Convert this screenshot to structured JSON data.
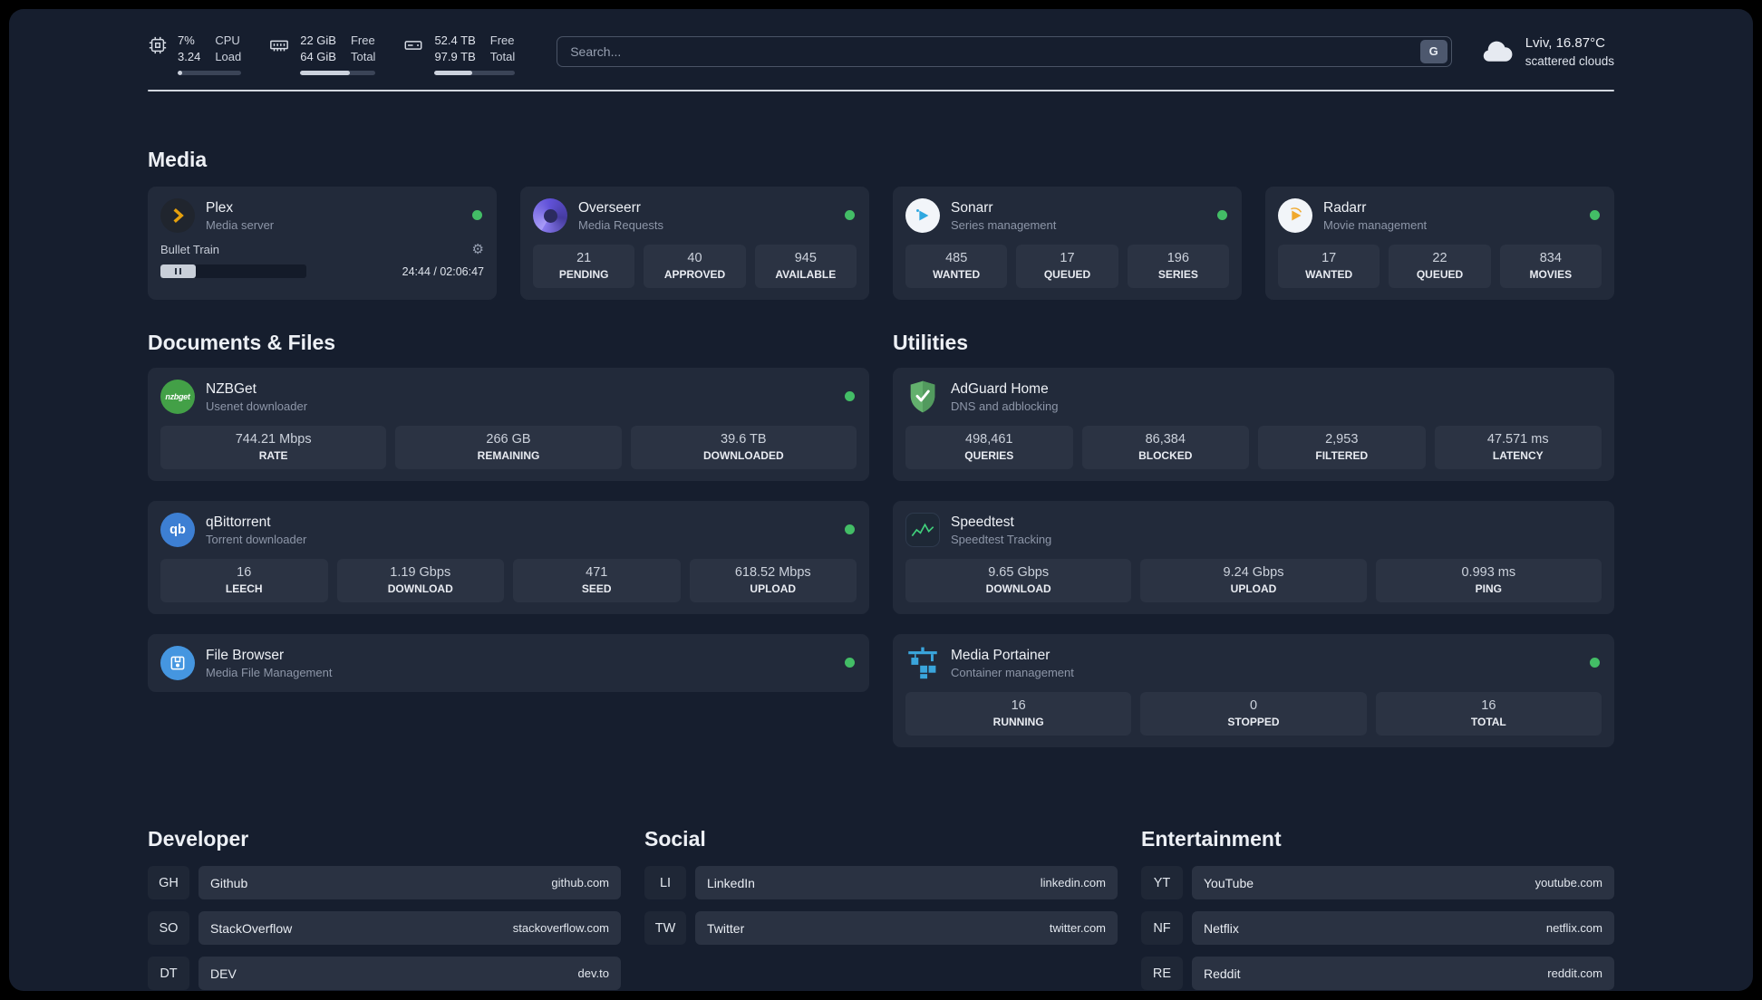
{
  "topbar": {
    "cpu": {
      "v1": "7%",
      "v2": "3.24",
      "l1": "CPU",
      "l2": "Load",
      "bar": 7
    },
    "ram": {
      "v1": "22 GiB",
      "v2": "64 GiB",
      "l1": "Free",
      "l2": "Total",
      "bar": 66
    },
    "disk": {
      "v1": "52.4 TB",
      "v2": "97.9 TB",
      "l1": "Free",
      "l2": "Total",
      "bar": 47
    },
    "search": {
      "placeholder": "Search...",
      "button": "G"
    },
    "weather": {
      "location": "Lviv, 16.87°C",
      "condition": "scattered clouds"
    }
  },
  "media": {
    "heading": "Media",
    "plex": {
      "name": "Plex",
      "subtitle": "Media server",
      "now_playing": "Bullet Train",
      "time": "24:44 / 02:06:47",
      "progress": 20,
      "pill": 24
    },
    "overseerr": {
      "name": "Overseerr",
      "subtitle": "Media Requests",
      "stats": [
        {
          "value": "21",
          "label": "PENDING"
        },
        {
          "value": "40",
          "label": "APPROVED"
        },
        {
          "value": "945",
          "label": "AVAILABLE"
        }
      ]
    },
    "sonarr": {
      "name": "Sonarr",
      "subtitle": "Series management",
      "stats": [
        {
          "value": "485",
          "label": "WANTED"
        },
        {
          "value": "17",
          "label": "QUEUED"
        },
        {
          "value": "196",
          "label": "SERIES"
        }
      ]
    },
    "radarr": {
      "name": "Radarr",
      "subtitle": "Movie management",
      "stats": [
        {
          "value": "17",
          "label": "WANTED"
        },
        {
          "value": "22",
          "label": "QUEUED"
        },
        {
          "value": "834",
          "label": "MOVIES"
        }
      ]
    }
  },
  "documents": {
    "heading": "Documents & Files",
    "nzbget": {
      "name": "NZBGet",
      "subtitle": "Usenet downloader",
      "stats": [
        {
          "value": "744.21 Mbps",
          "label": "RATE"
        },
        {
          "value": "266 GB",
          "label": "REMAINING"
        },
        {
          "value": "39.6 TB",
          "label": "DOWNLOADED"
        }
      ]
    },
    "qbittorrent": {
      "name": "qBittorrent",
      "subtitle": "Torrent downloader",
      "stats": [
        {
          "value": "16",
          "label": "LEECH"
        },
        {
          "value": "1.19 Gbps",
          "label": "DOWNLOAD"
        },
        {
          "value": "471",
          "label": "SEED"
        },
        {
          "value": "618.52 Mbps",
          "label": "UPLOAD"
        }
      ]
    },
    "filebrowser": {
      "name": "File Browser",
      "subtitle": "Media File Management"
    }
  },
  "utilities": {
    "heading": "Utilities",
    "adguard": {
      "name": "AdGuard Home",
      "subtitle": "DNS and adblocking",
      "stats": [
        {
          "value": "498,461",
          "label": "QUERIES"
        },
        {
          "value": "86,384",
          "label": "BLOCKED"
        },
        {
          "value": "2,953",
          "label": "FILTERED"
        },
        {
          "value": "47.571 ms",
          "label": "LATENCY"
        }
      ]
    },
    "speedtest": {
      "name": "Speedtest",
      "subtitle": "Speedtest Tracking",
      "stats": [
        {
          "value": "9.65 Gbps",
          "label": "DOWNLOAD"
        },
        {
          "value": "9.24 Gbps",
          "label": "UPLOAD"
        },
        {
          "value": "0.993 ms",
          "label": "PING"
        }
      ]
    },
    "portainer": {
      "name": "Media Portainer",
      "subtitle": "Container management",
      "stats": [
        {
          "value": "16",
          "label": "RUNNING"
        },
        {
          "value": "0",
          "label": "STOPPED"
        },
        {
          "value": "16",
          "label": "TOTAL"
        }
      ]
    }
  },
  "bookmarks": {
    "developer": {
      "heading": "Developer",
      "items": [
        {
          "abbr": "GH",
          "name": "Github",
          "url": "github.com"
        },
        {
          "abbr": "SO",
          "name": "StackOverflow",
          "url": "stackoverflow.com"
        },
        {
          "abbr": "DT",
          "name": "DEV",
          "url": "dev.to"
        }
      ]
    },
    "social": {
      "heading": "Social",
      "items": [
        {
          "abbr": "LI",
          "name": "LinkedIn",
          "url": "linkedin.com"
        },
        {
          "abbr": "TW",
          "name": "Twitter",
          "url": "twitter.com"
        }
      ]
    },
    "entertainment": {
      "heading": "Entertainment",
      "items": [
        {
          "abbr": "YT",
          "name": "YouTube",
          "url": "youtube.com"
        },
        {
          "abbr": "NF",
          "name": "Netflix",
          "url": "netflix.com"
        },
        {
          "abbr": "RE",
          "name": "Reddit",
          "url": "reddit.com"
        }
      ]
    }
  }
}
